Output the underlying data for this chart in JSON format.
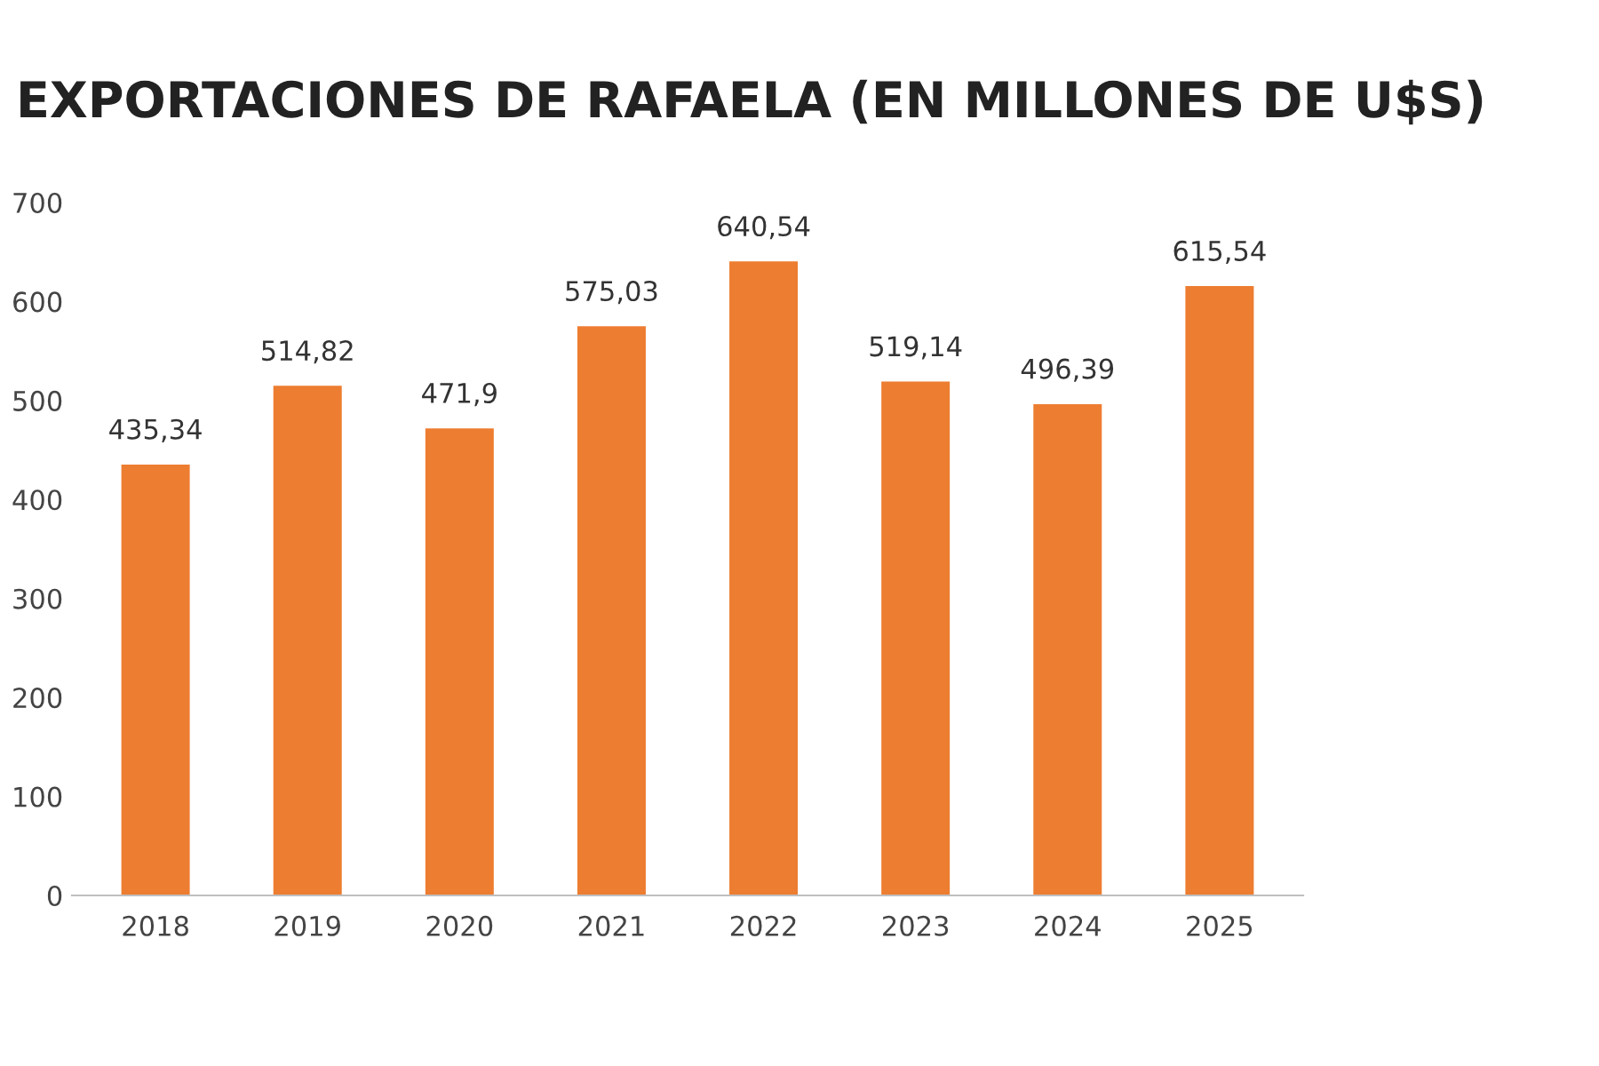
{
  "chart_data": {
    "type": "bar",
    "title": "EXPORTACIONES DE RAFAELA (EN MILLONES DE U$S)",
    "categories": [
      "2018",
      "2019",
      "2020",
      "2021",
      "2022",
      "2023",
      "2024",
      "2025"
    ],
    "values": [
      435.34,
      514.82,
      471.9,
      575.03,
      640.54,
      519.14,
      496.39,
      615.54
    ],
    "value_labels": [
      "435,34",
      "514,82",
      "471,9",
      "575,03",
      "640,54",
      "519,14",
      "496,39",
      "615,54"
    ],
    "color": "#ed7d31",
    "ylim": [
      0,
      700
    ],
    "yticks": [
      0,
      100,
      200,
      300,
      400,
      500,
      600,
      700
    ],
    "grid": false
  }
}
